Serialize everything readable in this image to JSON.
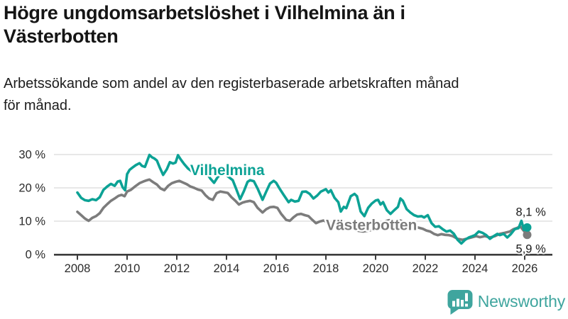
{
  "header": {
    "title": "Högre ungdomsarbetslöshet i Vilhelmina än i Västerbotten",
    "title_lines": [
      "Högre ungdomsarbetslöshet i Vilhelmina än i",
      "Västerbotten"
    ],
    "subtitle_lines": [
      "Arbetssökande som andel av den registerbaserade arbetskraften månad",
      "för månad."
    ]
  },
  "footer": {
    "brand": "Newsworthy",
    "brand_color": "#3FA59E",
    "logo_icon": "bar-chart-speech-bubble"
  },
  "chart_data": {
    "type": "line",
    "title": "Högre ungdomsarbetslöshet i Vilhelmina än i Västerbotten",
    "xlabel": "",
    "ylabel": "",
    "x_unit": "decimal_year",
    "xlim": [
      2007.1,
      2027.1
    ],
    "ylim": [
      0,
      32
    ],
    "grid": "horizontal",
    "legend_position": "inline-labels",
    "colors": {
      "grid": "#DADADA",
      "axis": "#3C3C3C",
      "tick_text": "#2B2B2B",
      "annotation_text": "#1A1A1A",
      "halo": "#FFFFFF"
    },
    "yticks": [
      {
        "value": 30,
        "label": "30 %"
      },
      {
        "value": 20,
        "label": "20 %"
      },
      {
        "value": 10,
        "label": "10 %"
      },
      {
        "value": 0,
        "label": "0 %"
      }
    ],
    "xticks": [
      {
        "value": 2008,
        "label": "2008"
      },
      {
        "value": 2010,
        "label": "2010"
      },
      {
        "value": 2012,
        "label": "2012"
      },
      {
        "value": 2014,
        "label": "2014"
      },
      {
        "value": 2016,
        "label": "2016"
      },
      {
        "value": 2018,
        "label": "2018"
      },
      {
        "value": 2020,
        "label": "2020"
      },
      {
        "value": 2022,
        "label": "2022"
      },
      {
        "value": 2024,
        "label": "2024"
      },
      {
        "value": 2026,
        "label": "2026"
      }
    ],
    "series": [
      {
        "name": "Vilhelmina",
        "color": "#0CA295",
        "end_value_label": "8,1 %",
        "label_anchor": {
          "x": 2012.54,
          "y": 23.8
        },
        "points": [
          [
            2008.0,
            18.6
          ],
          [
            2008.15,
            17.0
          ],
          [
            2008.3,
            16.3
          ],
          [
            2008.45,
            16.1
          ],
          [
            2008.6,
            16.6
          ],
          [
            2008.75,
            16.3
          ],
          [
            2008.9,
            17.2
          ],
          [
            2009.05,
            19.4
          ],
          [
            2009.2,
            20.4
          ],
          [
            2009.35,
            21.2
          ],
          [
            2009.5,
            20.6
          ],
          [
            2009.62,
            21.9
          ],
          [
            2009.72,
            22.1
          ],
          [
            2009.82,
            20.2
          ],
          [
            2009.92,
            19.3
          ],
          [
            2010.0,
            24.1
          ],
          [
            2010.1,
            25.4
          ],
          [
            2010.2,
            26.0
          ],
          [
            2010.35,
            26.8
          ],
          [
            2010.5,
            27.4
          ],
          [
            2010.6,
            26.6
          ],
          [
            2010.72,
            26.3
          ],
          [
            2010.82,
            28.3
          ],
          [
            2010.9,
            29.9
          ],
          [
            2011.0,
            29.2
          ],
          [
            2011.1,
            28.8
          ],
          [
            2011.2,
            28.2
          ],
          [
            2011.32,
            26.0
          ],
          [
            2011.45,
            23.9
          ],
          [
            2011.6,
            25.6
          ],
          [
            2011.72,
            27.7
          ],
          [
            2011.85,
            27.3
          ],
          [
            2011.95,
            27.6
          ],
          [
            2012.05,
            29.8
          ],
          [
            2012.15,
            28.6
          ],
          [
            2012.3,
            27.1
          ],
          [
            2012.45,
            25.8
          ],
          [
            2012.6,
            25.0
          ],
          [
            2012.75,
            24.3
          ],
          [
            2012.9,
            24.8
          ],
          [
            2013.05,
            25.5
          ],
          [
            2013.2,
            24.6
          ],
          [
            2013.35,
            22.8
          ],
          [
            2013.5,
            21.5
          ],
          [
            2013.65,
            23.3
          ],
          [
            2013.8,
            24.2
          ],
          [
            2013.95,
            24.0
          ],
          [
            2014.1,
            23.2
          ],
          [
            2014.25,
            22.3
          ],
          [
            2014.4,
            19.5
          ],
          [
            2014.55,
            16.6
          ],
          [
            2014.7,
            19.0
          ],
          [
            2014.85,
            21.8
          ],
          [
            2014.95,
            22.3
          ],
          [
            2015.1,
            22.0
          ],
          [
            2015.25,
            19.8
          ],
          [
            2015.45,
            16.4
          ],
          [
            2015.6,
            18.9
          ],
          [
            2015.75,
            21.3
          ],
          [
            2015.9,
            22.1
          ],
          [
            2016.0,
            21.5
          ],
          [
            2016.15,
            19.6
          ],
          [
            2016.3,
            17.9
          ],
          [
            2016.5,
            15.7
          ],
          [
            2016.6,
            16.4
          ],
          [
            2016.75,
            15.9
          ],
          [
            2016.9,
            16.1
          ],
          [
            2017.05,
            18.8
          ],
          [
            2017.2,
            18.9
          ],
          [
            2017.35,
            18.2
          ],
          [
            2017.5,
            16.8
          ],
          [
            2017.65,
            17.7
          ],
          [
            2017.8,
            18.9
          ],
          [
            2018.0,
            19.6
          ],
          [
            2018.1,
            18.6
          ],
          [
            2018.2,
            19.3
          ],
          [
            2018.35,
            17.0
          ],
          [
            2018.5,
            15.7
          ],
          [
            2018.6,
            12.9
          ],
          [
            2018.72,
            14.3
          ],
          [
            2018.82,
            13.9
          ],
          [
            2019.0,
            17.5
          ],
          [
            2019.15,
            18.2
          ],
          [
            2019.25,
            17.5
          ],
          [
            2019.4,
            12.9
          ],
          [
            2019.55,
            11.5
          ],
          [
            2019.7,
            14.0
          ],
          [
            2019.85,
            15.3
          ],
          [
            2020.0,
            16.2
          ],
          [
            2020.1,
            16.4
          ],
          [
            2020.2,
            15.0
          ],
          [
            2020.3,
            15.7
          ],
          [
            2020.45,
            13.3
          ],
          [
            2020.6,
            12.2
          ],
          [
            2020.75,
            13.3
          ],
          [
            2020.9,
            14.3
          ],
          [
            2021.0,
            16.8
          ],
          [
            2021.1,
            16.1
          ],
          [
            2021.25,
            13.6
          ],
          [
            2021.4,
            12.6
          ],
          [
            2021.55,
            11.8
          ],
          [
            2021.7,
            11.4
          ],
          [
            2021.85,
            11.5
          ],
          [
            2021.95,
            11.1
          ],
          [
            2022.1,
            11.8
          ],
          [
            2022.25,
            9.4
          ],
          [
            2022.4,
            8.3
          ],
          [
            2022.55,
            8.5
          ],
          [
            2022.7,
            7.6
          ],
          [
            2022.85,
            6.9
          ],
          [
            2023.0,
            7.2
          ],
          [
            2023.15,
            6.2
          ],
          [
            2023.3,
            4.4
          ],
          [
            2023.45,
            3.3
          ],
          [
            2023.6,
            4.4
          ],
          [
            2023.75,
            5.1
          ],
          [
            2023.9,
            5.5
          ],
          [
            2024.0,
            5.8
          ],
          [
            2024.15,
            6.9
          ],
          [
            2024.3,
            6.5
          ],
          [
            2024.45,
            5.8
          ],
          [
            2024.6,
            4.7
          ],
          [
            2024.75,
            5.5
          ],
          [
            2024.9,
            6.2
          ],
          [
            2025.0,
            5.8
          ],
          [
            2025.15,
            6.2
          ],
          [
            2025.3,
            5.1
          ],
          [
            2025.45,
            6.2
          ],
          [
            2025.6,
            7.6
          ],
          [
            2025.75,
            7.9
          ],
          [
            2025.87,
            10.1
          ],
          [
            2025.97,
            7.4
          ],
          [
            2026.1,
            8.1
          ]
        ]
      },
      {
        "name": "Västerbotten",
        "color": "#7C7C7C",
        "end_value_label": "5,9 %",
        "label_anchor": {
          "x": 2018.0,
          "y": 7.3
        },
        "points": [
          [
            2008.0,
            12.8
          ],
          [
            2008.15,
            11.8
          ],
          [
            2008.3,
            10.8
          ],
          [
            2008.45,
            10.1
          ],
          [
            2008.6,
            11.0
          ],
          [
            2008.75,
            11.5
          ],
          [
            2008.9,
            12.4
          ],
          [
            2009.05,
            14.0
          ],
          [
            2009.2,
            15.1
          ],
          [
            2009.35,
            16.1
          ],
          [
            2009.5,
            16.8
          ],
          [
            2009.65,
            17.6
          ],
          [
            2009.78,
            17.9
          ],
          [
            2009.9,
            17.5
          ],
          [
            2010.0,
            18.9
          ],
          [
            2010.15,
            19.4
          ],
          [
            2010.3,
            20.3
          ],
          [
            2010.5,
            21.4
          ],
          [
            2010.65,
            21.9
          ],
          [
            2010.8,
            22.3
          ],
          [
            2010.9,
            22.5
          ],
          [
            2011.05,
            21.7
          ],
          [
            2011.2,
            21.0
          ],
          [
            2011.35,
            19.8
          ],
          [
            2011.5,
            19.3
          ],
          [
            2011.65,
            20.6
          ],
          [
            2011.8,
            21.4
          ],
          [
            2011.95,
            21.8
          ],
          [
            2012.1,
            22.1
          ],
          [
            2012.25,
            21.6
          ],
          [
            2012.4,
            21.1
          ],
          [
            2012.55,
            20.4
          ],
          [
            2012.7,
            20.0
          ],
          [
            2012.85,
            19.5
          ],
          [
            2013.0,
            19.2
          ],
          [
            2013.15,
            17.8
          ],
          [
            2013.3,
            16.8
          ],
          [
            2013.45,
            16.4
          ],
          [
            2013.6,
            18.4
          ],
          [
            2013.75,
            18.9
          ],
          [
            2013.9,
            18.7
          ],
          [
            2014.05,
            18.5
          ],
          [
            2014.2,
            17.2
          ],
          [
            2014.35,
            16.2
          ],
          [
            2014.5,
            15.0
          ],
          [
            2014.65,
            15.6
          ],
          [
            2014.8,
            15.9
          ],
          [
            2014.95,
            16.1
          ],
          [
            2015.1,
            15.7
          ],
          [
            2015.25,
            14.0
          ],
          [
            2015.45,
            12.6
          ],
          [
            2015.6,
            13.6
          ],
          [
            2015.75,
            14.2
          ],
          [
            2015.9,
            14.3
          ],
          [
            2016.05,
            14.0
          ],
          [
            2016.2,
            12.2
          ],
          [
            2016.4,
            10.4
          ],
          [
            2016.55,
            10.1
          ],
          [
            2016.7,
            11.2
          ],
          [
            2016.85,
            12.0
          ],
          [
            2017.0,
            12.2
          ],
          [
            2017.15,
            11.8
          ],
          [
            2017.3,
            11.5
          ],
          [
            2017.45,
            10.4
          ],
          [
            2017.6,
            9.4
          ],
          [
            2017.75,
            9.9
          ],
          [
            2017.9,
            10.2
          ],
          [
            2018.05,
            9.8
          ],
          [
            2018.2,
            9.3
          ],
          [
            2018.35,
            8.8
          ],
          [
            2018.5,
            8.4
          ],
          [
            2018.65,
            8.6
          ],
          [
            2018.8,
            8.9
          ],
          [
            2019.0,
            8.3
          ],
          [
            2019.15,
            7.5
          ],
          [
            2019.3,
            7.1
          ],
          [
            2019.5,
            6.9
          ],
          [
            2019.65,
            7.1
          ],
          [
            2019.8,
            7.3
          ],
          [
            2019.95,
            7.4
          ],
          [
            2020.1,
            8.0
          ],
          [
            2020.25,
            9.3
          ],
          [
            2020.4,
            10.0
          ],
          [
            2020.55,
            10.3
          ],
          [
            2020.7,
            10.1
          ],
          [
            2020.85,
            10.0
          ],
          [
            2021.0,
            10.2
          ],
          [
            2021.15,
            9.6
          ],
          [
            2021.3,
            9.1
          ],
          [
            2021.45,
            8.6
          ],
          [
            2021.6,
            8.3
          ],
          [
            2021.75,
            8.0
          ],
          [
            2021.9,
            7.7
          ],
          [
            2022.05,
            7.2
          ],
          [
            2022.2,
            6.9
          ],
          [
            2022.35,
            6.2
          ],
          [
            2022.5,
            5.8
          ],
          [
            2022.65,
            6.1
          ],
          [
            2022.8,
            5.9
          ],
          [
            2022.95,
            5.8
          ],
          [
            2023.1,
            5.5
          ],
          [
            2023.3,
            4.7
          ],
          [
            2023.5,
            4.4
          ],
          [
            2023.65,
            4.7
          ],
          [
            2023.85,
            5.1
          ],
          [
            2024.05,
            5.5
          ],
          [
            2024.2,
            5.2
          ],
          [
            2024.4,
            5.5
          ],
          [
            2024.6,
            5.1
          ],
          [
            2024.8,
            5.5
          ],
          [
            2025.0,
            6.2
          ],
          [
            2025.2,
            6.5
          ],
          [
            2025.4,
            6.9
          ],
          [
            2025.55,
            7.6
          ],
          [
            2025.7,
            8.0
          ],
          [
            2025.82,
            8.4
          ],
          [
            2026.1,
            5.9
          ]
        ]
      }
    ],
    "annotations": [
      {
        "text": "8,1 %",
        "x": 2026.85,
        "y": 11.6,
        "align": "end"
      },
      {
        "text": "5,9 %",
        "x": 2026.85,
        "y": 0.55,
        "align": "end"
      }
    ]
  }
}
